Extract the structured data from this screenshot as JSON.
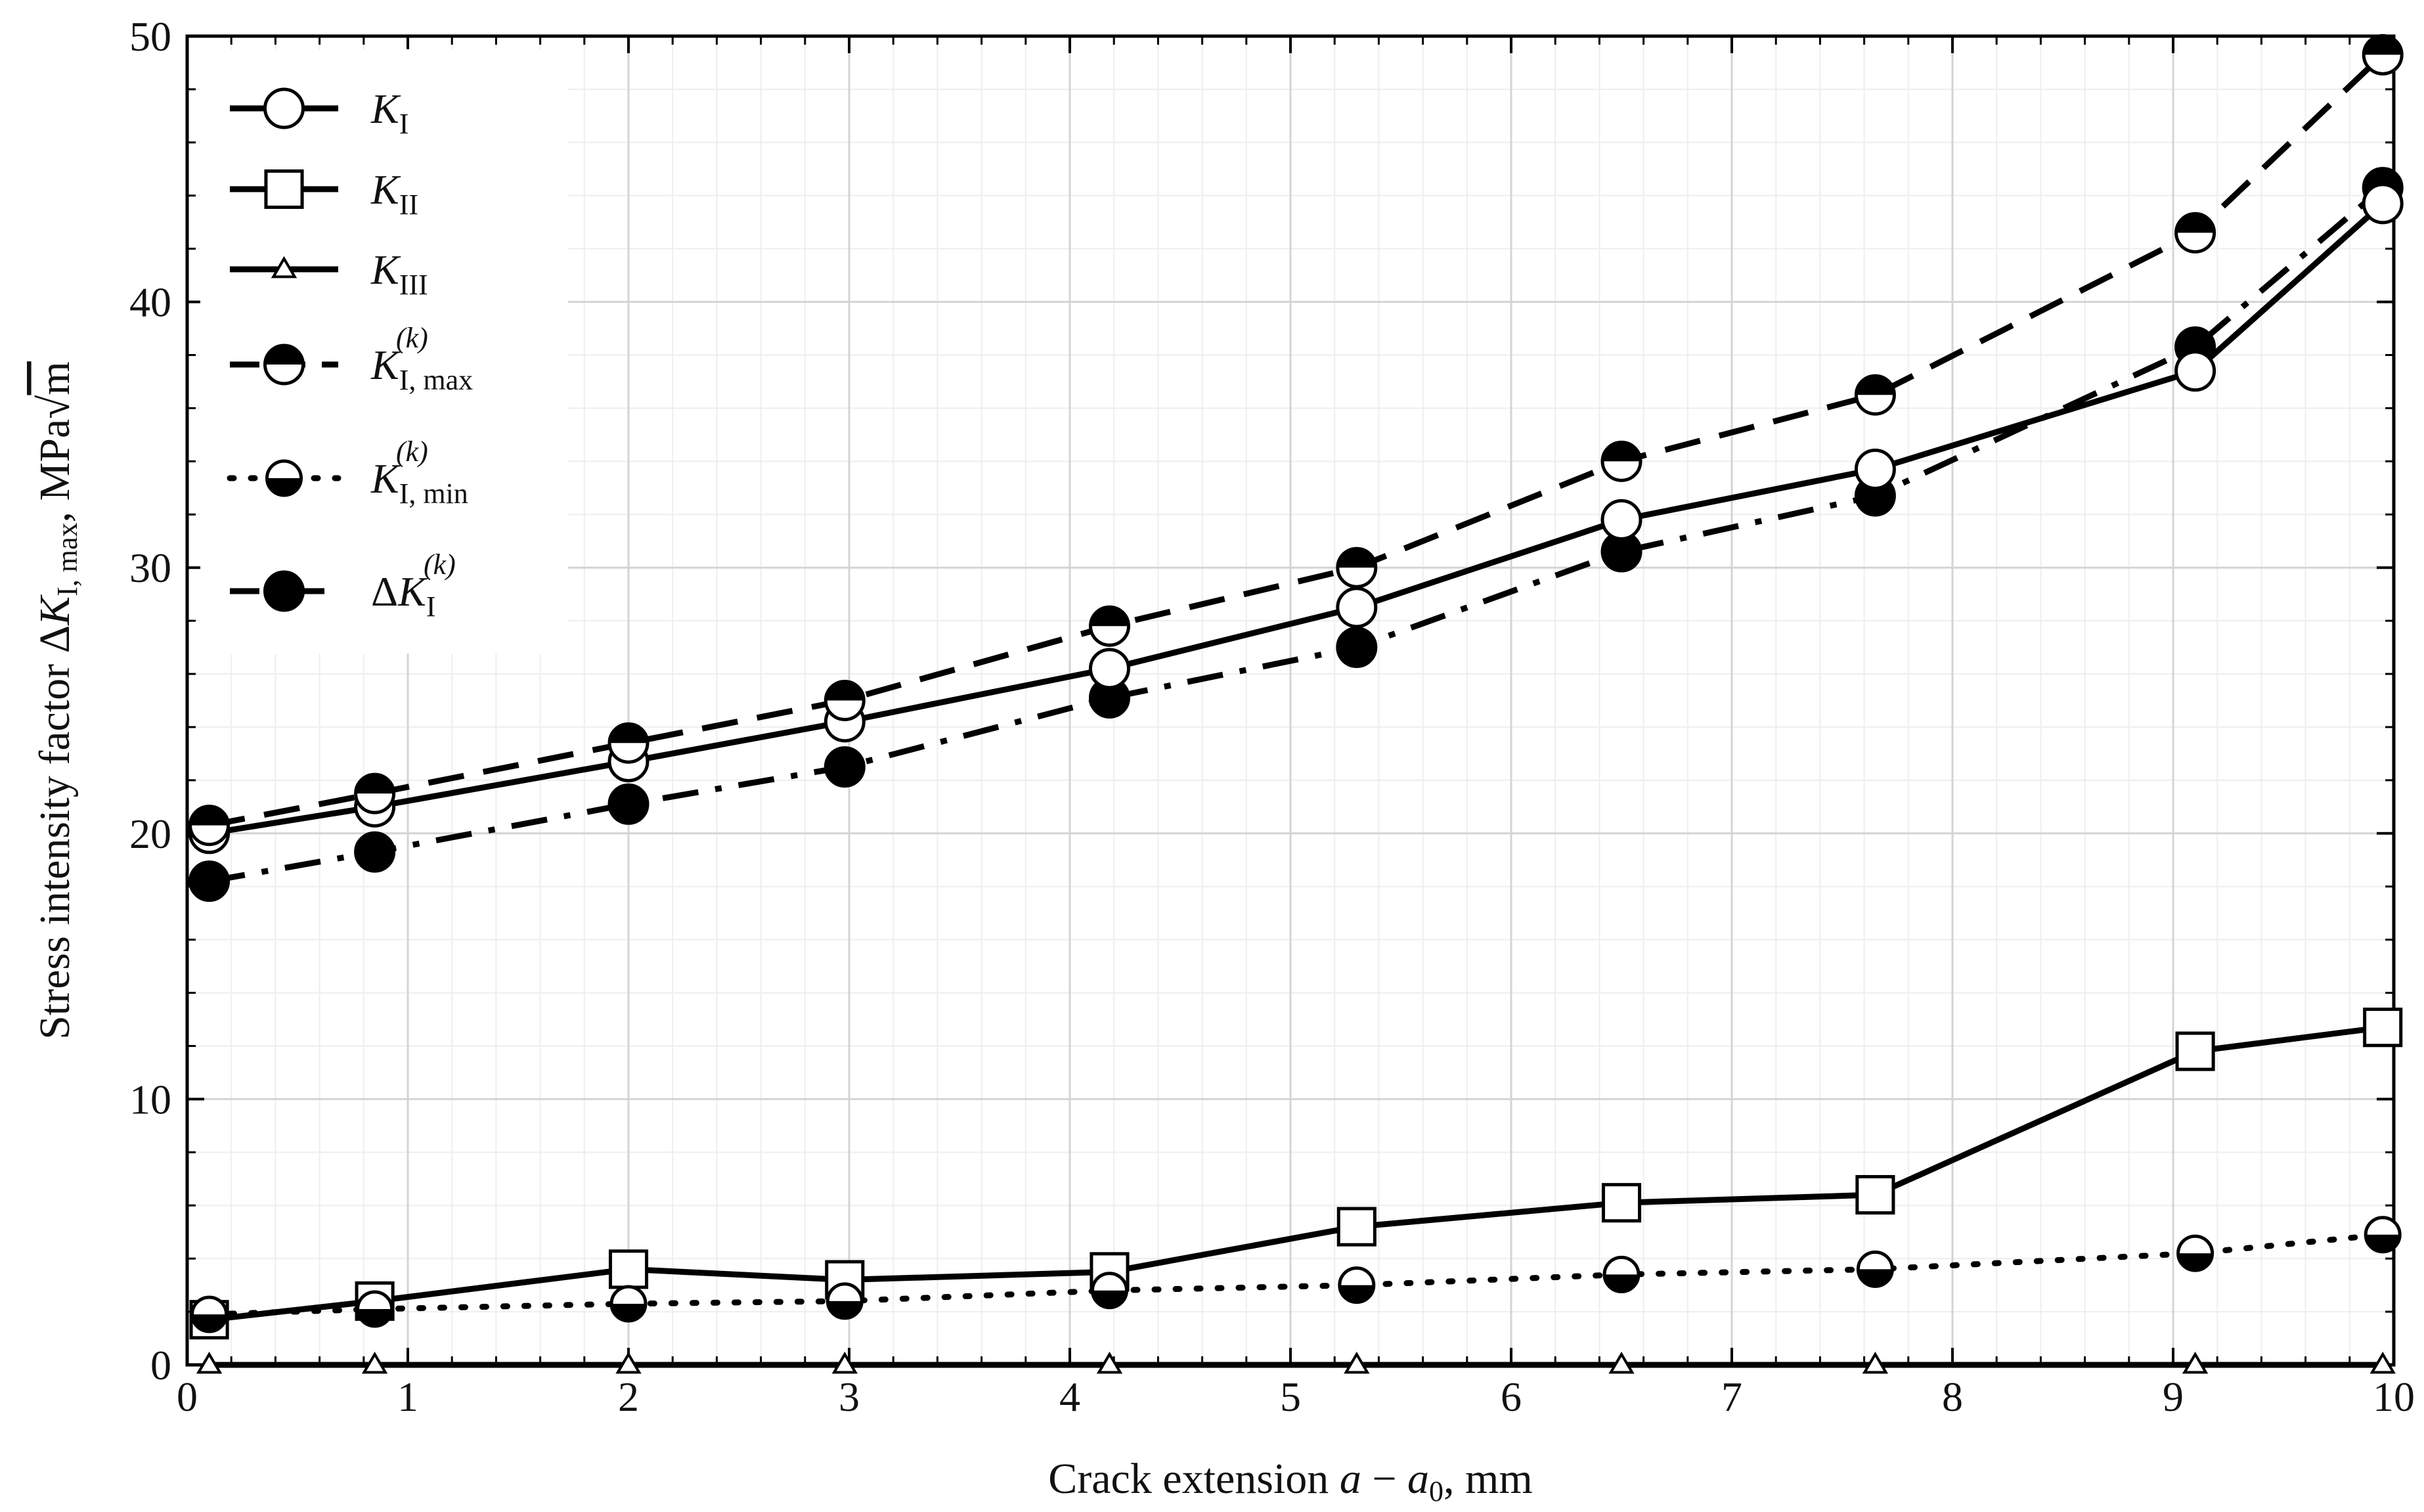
{
  "chart_data": {
    "type": "line",
    "xlabel": {
      "prefix": "Crack extension ",
      "var_a": "a",
      "minus": " − ",
      "var_a0": "a",
      "a0_sub": "0",
      "suffix": ", mm"
    },
    "ylabel": {
      "prefix": "Stress intensity factor ",
      "delta": "Δ",
      "var_K": "K",
      "K_sub": "I, max",
      "suffix": ", MPa",
      "sqrt": "√",
      "unit": "m"
    },
    "xlim": [
      0,
      10
    ],
    "ylim": [
      0,
      50
    ],
    "x_ticks": [
      "0",
      "1",
      "2",
      "3",
      "4",
      "5",
      "6",
      "7",
      "8",
      "9",
      "10"
    ],
    "y_ticks": [
      "0",
      "10",
      "20",
      "30",
      "40",
      "50"
    ],
    "grid": true,
    "legend_position": "top-left",
    "x": [
      0.1,
      0.85,
      2.0,
      2.98,
      4.18,
      5.3,
      6.5,
      7.65,
      9.1,
      9.95
    ],
    "series": [
      {
        "name": "K_I",
        "label": {
          "main": "K",
          "sub": "I",
          "sup": ""
        },
        "line_style": "solid",
        "marker": "open-circle",
        "values": [
          20.0,
          21.0,
          22.7,
          24.2,
          26.2,
          28.5,
          31.8,
          33.7,
          37.4,
          43.7
        ]
      },
      {
        "name": "K_II",
        "label": {
          "main": "K",
          "sub": "II",
          "sup": ""
        },
        "line_style": "solid",
        "marker": "open-square",
        "values": [
          1.7,
          2.4,
          3.6,
          3.2,
          3.5,
          5.2,
          6.1,
          6.4,
          11.8,
          12.7
        ]
      },
      {
        "name": "K_III",
        "label": {
          "main": "K",
          "sub": "III",
          "sup": ""
        },
        "line_style": "solid",
        "marker": "open-triangle",
        "values": [
          0,
          0,
          0,
          0,
          0,
          0,
          0,
          0,
          0,
          0
        ]
      },
      {
        "name": "K_I,max^(k)",
        "label": {
          "main": "K",
          "sub": "I, max",
          "sup": "(k)"
        },
        "line_style": "dashed",
        "marker": "top-filled-circle",
        "values": [
          20.3,
          21.5,
          23.4,
          25.0,
          27.8,
          30.0,
          34.0,
          36.5,
          42.6,
          49.3
        ]
      },
      {
        "name": "K_I,min^(k)",
        "label": {
          "main": "K",
          "sub": "I, min",
          "sup": "(k)"
        },
        "line_style": "dotted",
        "marker": "bottom-filled-circle",
        "values": [
          1.9,
          2.1,
          2.3,
          2.4,
          2.8,
          3.0,
          3.4,
          3.6,
          4.2,
          4.9
        ]
      },
      {
        "name": "ΔK_I^(k)",
        "label": {
          "main": "K",
          "prefix": "Δ",
          "sub": "I",
          "sup": "(k)"
        },
        "line_style": "dash-dot",
        "marker": "filled-circle",
        "values": [
          18.2,
          19.3,
          21.1,
          22.5,
          25.1,
          27.0,
          30.6,
          32.7,
          38.3,
          44.3
        ]
      }
    ]
  }
}
